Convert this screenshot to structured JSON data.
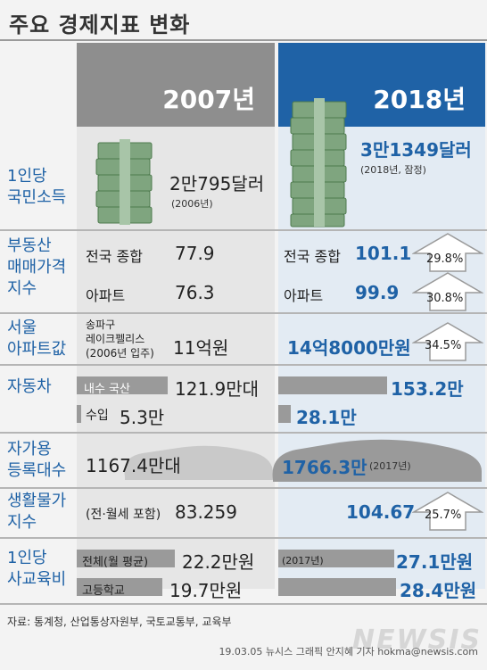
{
  "title": "주요 경제지표 변화",
  "years": {
    "y2007": "2007년",
    "y2018": "2018년"
  },
  "gni": {
    "cat_line1": "1인당",
    "cat_line2": "국민소득",
    "v2007": "2만795달러",
    "n2007": "(2006년)",
    "v2018": "3만1349달러",
    "n2018": "(2018년, 잠정)"
  },
  "housing": {
    "cat_line1": "부동산",
    "cat_line2": "매매가격",
    "cat_line3": "지수",
    "rows": [
      {
        "label": "전국 종합",
        "v2007": "77.9",
        "v2018": "101.1",
        "pct": "29.8%"
      },
      {
        "label": "아파트",
        "v2007": "76.3",
        "v2018": "99.9",
        "pct": "30.8%"
      }
    ]
  },
  "seoul_apt": {
    "cat_line1": "서울",
    "cat_line2": "아파트값",
    "label_line1": "송파구",
    "label_line2": "레이크펠리스",
    "label_line3": "(2006년 입주)",
    "v2007": "11억원",
    "v2018": "14억8000만원",
    "pct": "34.5%"
  },
  "cars": {
    "cat": "자동차",
    "domestic_label": "내수 국산",
    "domestic_2007": "121.9만대",
    "domestic_2018": "153.2만",
    "import_label": "수입",
    "import_2007": "5.3만",
    "import_2018": "28.1만"
  },
  "registered": {
    "cat_line1": "자가용",
    "cat_line2": "등록대수",
    "v2007": "1167.4만대",
    "v2018": "1766.3만",
    "n2018": "(2017년)"
  },
  "cpi": {
    "cat_line1": "생활물가",
    "cat_line2": "지수",
    "label": "(전·월세 포함)",
    "v2007": "83.259",
    "v2018": "104.67",
    "pct": "25.7%"
  },
  "education": {
    "cat_line1": "1인당",
    "cat_line2": "사교육비",
    "total_label": "전체(월 평균)",
    "total_2007": "22.2만원",
    "total_note": "(2017년)",
    "total_2018": "27.1만원",
    "hs_label": "고등학교",
    "hs_2007": "19.7만원",
    "hs_2018": "28.4만원"
  },
  "footer": {
    "source": "자료: 통계청, 산업통상자원부, 국토교통부, 교육부",
    "credit": "19.03.05 뉴시스 그래픽 안지혜 기자 hokma@newsis.com",
    "watermark": "NEWSIS"
  },
  "colors": {
    "accent": "#1f62a6",
    "gray_header": "#8e8e8e",
    "money": "#7fa57f"
  }
}
